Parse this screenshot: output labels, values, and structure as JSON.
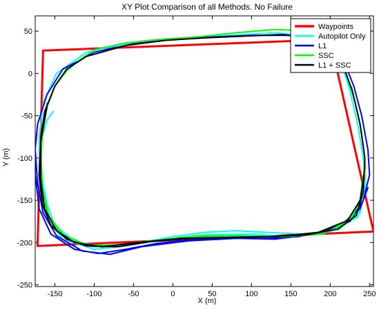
{
  "chart_data": {
    "type": "line",
    "title": "XY Plot Comparison of all Methods. No Failure",
    "xlabel": "X (m)",
    "ylabel": "Y (m)",
    "xlim": [
      -175,
      255
    ],
    "ylim": [
      -252,
      68
    ],
    "grid": false,
    "legend_position": "top-right",
    "x_ticks": [
      -150,
      -100,
      -50,
      0,
      50,
      100,
      150,
      200,
      250
    ],
    "y_ticks": [
      50,
      0,
      -50,
      -100,
      -150,
      -200,
      -250
    ],
    "series": [
      {
        "name": "Waypoints",
        "color": "#ff0000",
        "width": 3,
        "points": [
          [
            -165,
            27
          ],
          [
            200,
            40
          ],
          [
            255,
            -187
          ],
          [
            -172,
            -204
          ],
          [
            -165,
            27
          ]
        ]
      },
      {
        "name": "Autopilot Only",
        "color": "#00ffff",
        "width": 2,
        "points": [
          [
            -152,
            -45
          ],
          [
            -160,
            -55
          ],
          [
            -166,
            -75
          ],
          [
            -168,
            -100
          ],
          [
            -166,
            -125
          ],
          [
            -160,
            -155
          ],
          [
            -150,
            -180
          ],
          [
            -125,
            -198
          ],
          [
            -90,
            -206
          ],
          [
            -40,
            -200
          ],
          [
            0,
            -193
          ],
          [
            40,
            -188
          ],
          [
            80,
            -186
          ],
          [
            120,
            -188
          ],
          [
            170,
            -190
          ],
          [
            210,
            -185
          ],
          [
            238,
            -165
          ],
          [
            245,
            -130
          ],
          [
            242,
            -100
          ],
          [
            235,
            -60
          ],
          [
            225,
            -20
          ],
          [
            210,
            25
          ],
          [
            180,
            44
          ],
          [
            130,
            48
          ],
          [
            70,
            45
          ],
          [
            0,
            40
          ],
          [
            -60,
            35
          ],
          [
            -110,
            25
          ],
          [
            -148,
            0
          ],
          [
            -165,
            -35
          ],
          [
            -170,
            -75
          ],
          [
            -170,
            -130
          ],
          [
            -162,
            -170
          ],
          [
            -140,
            -196
          ],
          [
            -100,
            -208
          ],
          [
            -60,
            -204
          ],
          [
            -20,
            -198
          ],
          [
            40,
            -191
          ],
          [
            100,
            -190
          ],
          [
            150,
            -193
          ],
          [
            200,
            -187
          ],
          [
            235,
            -170
          ],
          [
            242,
            -140
          ]
        ]
      },
      {
        "name": "L1",
        "color": "#0000ff",
        "width": 2,
        "points": [
          [
            -175,
            -85
          ],
          [
            -175,
            -120
          ],
          [
            -170,
            -160
          ],
          [
            -155,
            -190
          ],
          [
            -125,
            -208
          ],
          [
            -95,
            -213
          ],
          [
            -60,
            -208
          ],
          [
            -20,
            -201
          ],
          [
            30,
            -196
          ],
          [
            80,
            -195
          ],
          [
            120,
            -195
          ],
          [
            160,
            -193
          ],
          [
            200,
            -185
          ],
          [
            225,
            -175
          ],
          [
            242,
            -150
          ],
          [
            250,
            -120
          ],
          [
            248,
            -90
          ],
          [
            240,
            -50
          ],
          [
            230,
            -15
          ],
          [
            215,
            20
          ],
          [
            195,
            38
          ],
          [
            150,
            45
          ],
          [
            100,
            45
          ],
          [
            50,
            43
          ],
          [
            0,
            40
          ],
          [
            -50,
            35
          ],
          [
            -100,
            25
          ],
          [
            -140,
            5
          ],
          [
            -160,
            -25
          ],
          [
            -172,
            -60
          ],
          [
            -175,
            -90
          ],
          [
            -172,
            -130
          ],
          [
            -165,
            -165
          ],
          [
            -148,
            -192
          ],
          [
            -115,
            -210
          ],
          [
            -80,
            -214
          ],
          [
            -40,
            -205
          ],
          [
            20,
            -198
          ],
          [
            80,
            -195
          ],
          [
            130,
            -196
          ],
          [
            180,
            -190
          ],
          [
            215,
            -178
          ],
          [
            238,
            -160
          ],
          [
            248,
            -135
          ]
        ]
      },
      {
        "name": "SSC",
        "color": "#00ff00",
        "width": 2,
        "points": [
          [
            -160,
            -35
          ],
          [
            -166,
            -70
          ],
          [
            -168,
            -110
          ],
          [
            -165,
            -150
          ],
          [
            -152,
            -180
          ],
          [
            -130,
            -198
          ],
          [
            -100,
            -205
          ],
          [
            -50,
            -201
          ],
          [
            0,
            -195
          ],
          [
            50,
            -193
          ],
          [
            100,
            -193
          ],
          [
            150,
            -192
          ],
          [
            200,
            -186
          ],
          [
            228,
            -170
          ],
          [
            240,
            -145
          ],
          [
            245,
            -110
          ],
          [
            240,
            -70
          ],
          [
            232,
            -35
          ],
          [
            220,
            0
          ],
          [
            205,
            35
          ],
          [
            175,
            50
          ],
          [
            130,
            52
          ],
          [
            80,
            48
          ],
          [
            30,
            43
          ],
          [
            -20,
            40
          ],
          [
            -60,
            36
          ],
          [
            -100,
            28
          ],
          [
            -120,
            15
          ],
          [
            -135,
            3
          ],
          [
            -150,
            -15
          ],
          [
            -162,
            -45
          ],
          [
            -168,
            -90
          ],
          [
            -166,
            -135
          ],
          [
            -158,
            -168
          ],
          [
            -140,
            -190
          ],
          [
            -110,
            -203
          ],
          [
            -70,
            -203
          ],
          [
            -30,
            -198
          ],
          [
            30,
            -192
          ],
          [
            90,
            -192
          ],
          [
            140,
            -193
          ],
          [
            190,
            -190
          ],
          [
            222,
            -176
          ],
          [
            238,
            -152
          ],
          [
            242,
            -120
          ]
        ]
      },
      {
        "name": "L1 + SSC",
        "color": "#000000",
        "width": 2,
        "points": [
          [
            -160,
            -40
          ],
          [
            -168,
            -80
          ],
          [
            -170,
            -120
          ],
          [
            -166,
            -155
          ],
          [
            -155,
            -180
          ],
          [
            -135,
            -196
          ],
          [
            -110,
            -204
          ],
          [
            -70,
            -205
          ],
          [
            -30,
            -199
          ],
          [
            20,
            -195
          ],
          [
            70,
            -194
          ],
          [
            120,
            -193
          ],
          [
            170,
            -191
          ],
          [
            210,
            -184
          ],
          [
            233,
            -168
          ],
          [
            242,
            -140
          ],
          [
            244,
            -100
          ],
          [
            238,
            -60
          ],
          [
            228,
            -20
          ],
          [
            212,
            20
          ],
          [
            185,
            40
          ],
          [
            140,
            46
          ],
          [
            90,
            44
          ],
          [
            40,
            42
          ],
          [
            -10,
            39
          ],
          [
            -60,
            33
          ],
          [
            -110,
            20
          ],
          [
            -135,
            5
          ],
          [
            -150,
            -15
          ],
          [
            -163,
            -45
          ],
          [
            -168,
            -80
          ],
          [
            -168,
            -125
          ],
          [
            -163,
            -160
          ],
          [
            -148,
            -186
          ],
          [
            -125,
            -200
          ],
          [
            -90,
            -205
          ],
          [
            -45,
            -200
          ],
          [
            10,
            -195
          ],
          [
            70,
            -194
          ],
          [
            130,
            -193
          ],
          [
            185,
            -188
          ],
          [
            222,
            -174
          ],
          [
            238,
            -150
          ],
          [
            243,
            -120
          ]
        ]
      }
    ]
  }
}
